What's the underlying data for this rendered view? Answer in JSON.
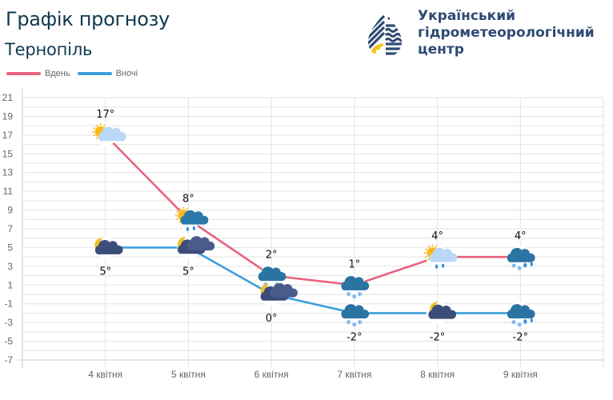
{
  "header": {
    "title": "Графік прогнозу",
    "city": "Тернопіль",
    "org_line1": "Український",
    "org_line2": "гідрометеорологічний",
    "org_line3": "центр",
    "logo_icon": "water-drop-logo-icon"
  },
  "legend": [
    {
      "label": "Вдень",
      "color": "#e8637f"
    },
    {
      "label": "Вночі",
      "color": "#3d9fdc"
    }
  ],
  "colors": {
    "day": "#e8637f",
    "night": "#3d9fdc",
    "grid": "#e3e3e3",
    "axis": "#cccccc",
    "title": "#0f3a4f",
    "org": "#2f4a74",
    "logo_yellow": "#f5c21b"
  },
  "chart_data": {
    "type": "line",
    "title": "Графік прогнозу",
    "subtitle": "Тернопіль",
    "xlabel": "",
    "ylabel": "",
    "categories": [
      "4 квітня",
      "5 квітня",
      "6 квітня",
      "7 квітня",
      "8 квітня",
      "9 квітня"
    ],
    "series": [
      {
        "name": "Вдень",
        "values": [
          17,
          8,
          2,
          1,
          4,
          4
        ],
        "labels": [
          "17°",
          "8°",
          "2°",
          "1°",
          "4°",
          "4°"
        ],
        "icons": [
          "sun-cloud-icon",
          "sun-cloud-rain-icon",
          "cloud-snow-icon",
          "cloud-snow-icon",
          "sun-cloud-rain-icon",
          "cloud-snow-rain-icon"
        ]
      },
      {
        "name": "Вночі",
        "values": [
          5,
          5,
          0,
          -2,
          -2,
          -2
        ],
        "labels": [
          "5°",
          "5°",
          "0°",
          "-2°",
          "-2°",
          "-2°"
        ],
        "icons": [
          "moon-cloud-icon",
          "moon-clouds-icon",
          "moon-clouds-icon",
          "cloud-snow-icon",
          "moon-cloud-snow-icon",
          "cloud-snow-rain-icon"
        ]
      }
    ],
    "yticks": [
      21,
      19,
      17,
      15,
      13,
      11,
      9,
      7,
      5,
      3,
      1,
      -1,
      -3,
      -5,
      -7
    ],
    "ylim": [
      -7,
      21
    ],
    "grid": true,
    "legend_position": "top-left"
  }
}
